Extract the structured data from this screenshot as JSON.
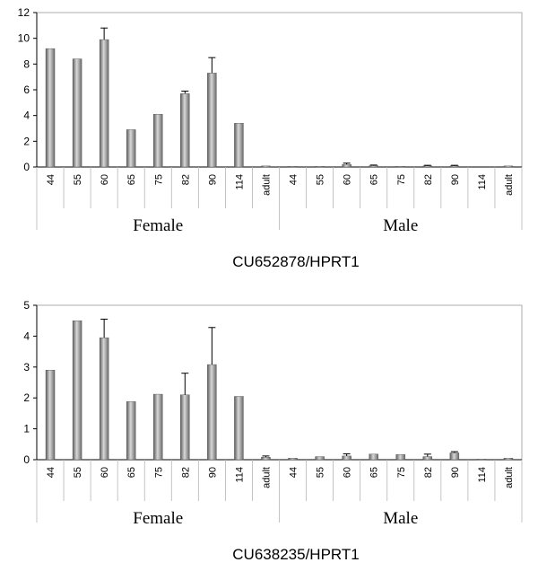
{
  "chart_data": [
    {
      "type": "bar",
      "title": "CU652878/HPRT1",
      "categories": [
        "44",
        "55",
        "60",
        "65",
        "75",
        "82",
        "90",
        "114",
        "adult",
        "44",
        "55",
        "60",
        "65",
        "75",
        "82",
        "90",
        "114",
        "adult"
      ],
      "groups": [
        {
          "label": "Female",
          "start": 0,
          "end": 8
        },
        {
          "label": "Male",
          "start": 9,
          "end": 17
        }
      ],
      "values": [
        9.2,
        8.4,
        9.9,
        2.9,
        4.1,
        5.7,
        7.3,
        3.4,
        0.08,
        0.05,
        0.05,
        0.2,
        0.1,
        0.05,
        0.08,
        0.08,
        0.0,
        0.08
      ],
      "errors": [
        0,
        0,
        0.9,
        0,
        0,
        0.2,
        1.2,
        0,
        0,
        0,
        0,
        0.1,
        0.05,
        0,
        0.05,
        0.05,
        0,
        0
      ],
      "ylim": [
        0,
        12
      ],
      "yticks": [
        "0",
        "2",
        "4",
        "6",
        "8",
        "10",
        "12"
      ],
      "xlabel": "",
      "ylabel": "",
      "grid": false,
      "bar_color": "#8a8a8a"
    },
    {
      "type": "bar",
      "title": "CU638235/HPRT1",
      "categories": [
        "44",
        "55",
        "60",
        "65",
        "75",
        "82",
        "90",
        "114",
        "adult",
        "44",
        "55",
        "60",
        "65",
        "75",
        "82",
        "90",
        "114",
        "adult"
      ],
      "groups": [
        {
          "label": "Female",
          "start": 0,
          "end": 8
        },
        {
          "label": "Male",
          "start": 9,
          "end": 17
        }
      ],
      "values": [
        2.9,
        4.5,
        3.95,
        1.88,
        2.12,
        2.1,
        3.08,
        2.05,
        0.08,
        0.05,
        0.1,
        0.12,
        0.18,
        0.17,
        0.1,
        0.22,
        0.02,
        0.05
      ],
      "errors": [
        0,
        0,
        0.6,
        0,
        0,
        0.7,
        1.2,
        0,
        0.04,
        0,
        0,
        0.07,
        0,
        0,
        0.08,
        0.04,
        0,
        0
      ],
      "ylim": [
        0,
        5
      ],
      "yticks": [
        "0",
        "1",
        "2",
        "3",
        "4",
        "5"
      ],
      "xlabel": "",
      "ylabel": "",
      "grid": false,
      "bar_color": "#8a8a8a"
    }
  ]
}
